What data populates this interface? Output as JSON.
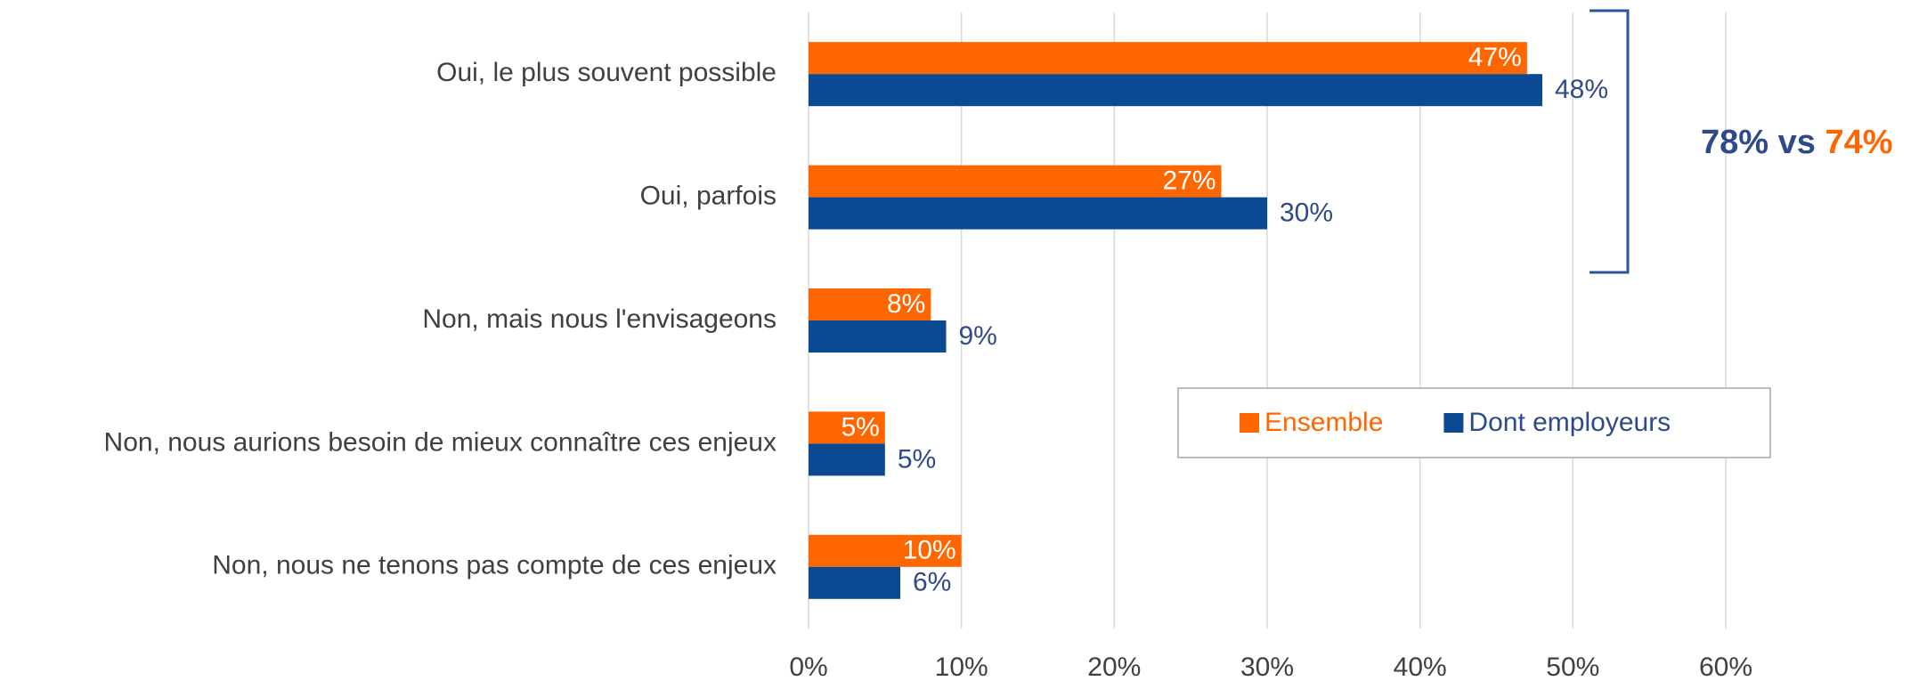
{
  "chart_data": {
    "type": "bar",
    "orientation": "horizontal",
    "categories": [
      "Oui, le plus souvent possible",
      "Oui, parfois",
      "Non, mais nous l'envisageons",
      "Non, nous aurions besoin de mieux connaître ces enjeux",
      "Non, nous ne tenons pas compte de ces enjeux"
    ],
    "series": [
      {
        "name": "Ensemble",
        "color": "#ff6600",
        "values": [
          47,
          27,
          8,
          5,
          10
        ],
        "value_labels": [
          "47%",
          "27%",
          "8%",
          "5%",
          "10%"
        ]
      },
      {
        "name": "Dont employeurs",
        "color": "#0b4a93",
        "values": [
          48,
          30,
          9,
          5,
          6
        ],
        "value_labels": [
          "48%",
          "30%",
          "9%",
          "5%",
          "6%"
        ]
      }
    ],
    "xlim": [
      0,
      60
    ],
    "xticks": [
      {
        "value": 0,
        "label": "0%"
      },
      {
        "value": 10,
        "label": "10%"
      },
      {
        "value": 20,
        "label": "20%"
      },
      {
        "value": 30,
        "label": "30%"
      },
      {
        "value": 40,
        "label": "40%"
      },
      {
        "value": 50,
        "label": "50%"
      },
      {
        "value": 60,
        "label": "60%"
      }
    ],
    "grid": true,
    "legend": "center-right",
    "annotation": [
      "78%",
      "vs",
      "74%"
    ]
  }
}
